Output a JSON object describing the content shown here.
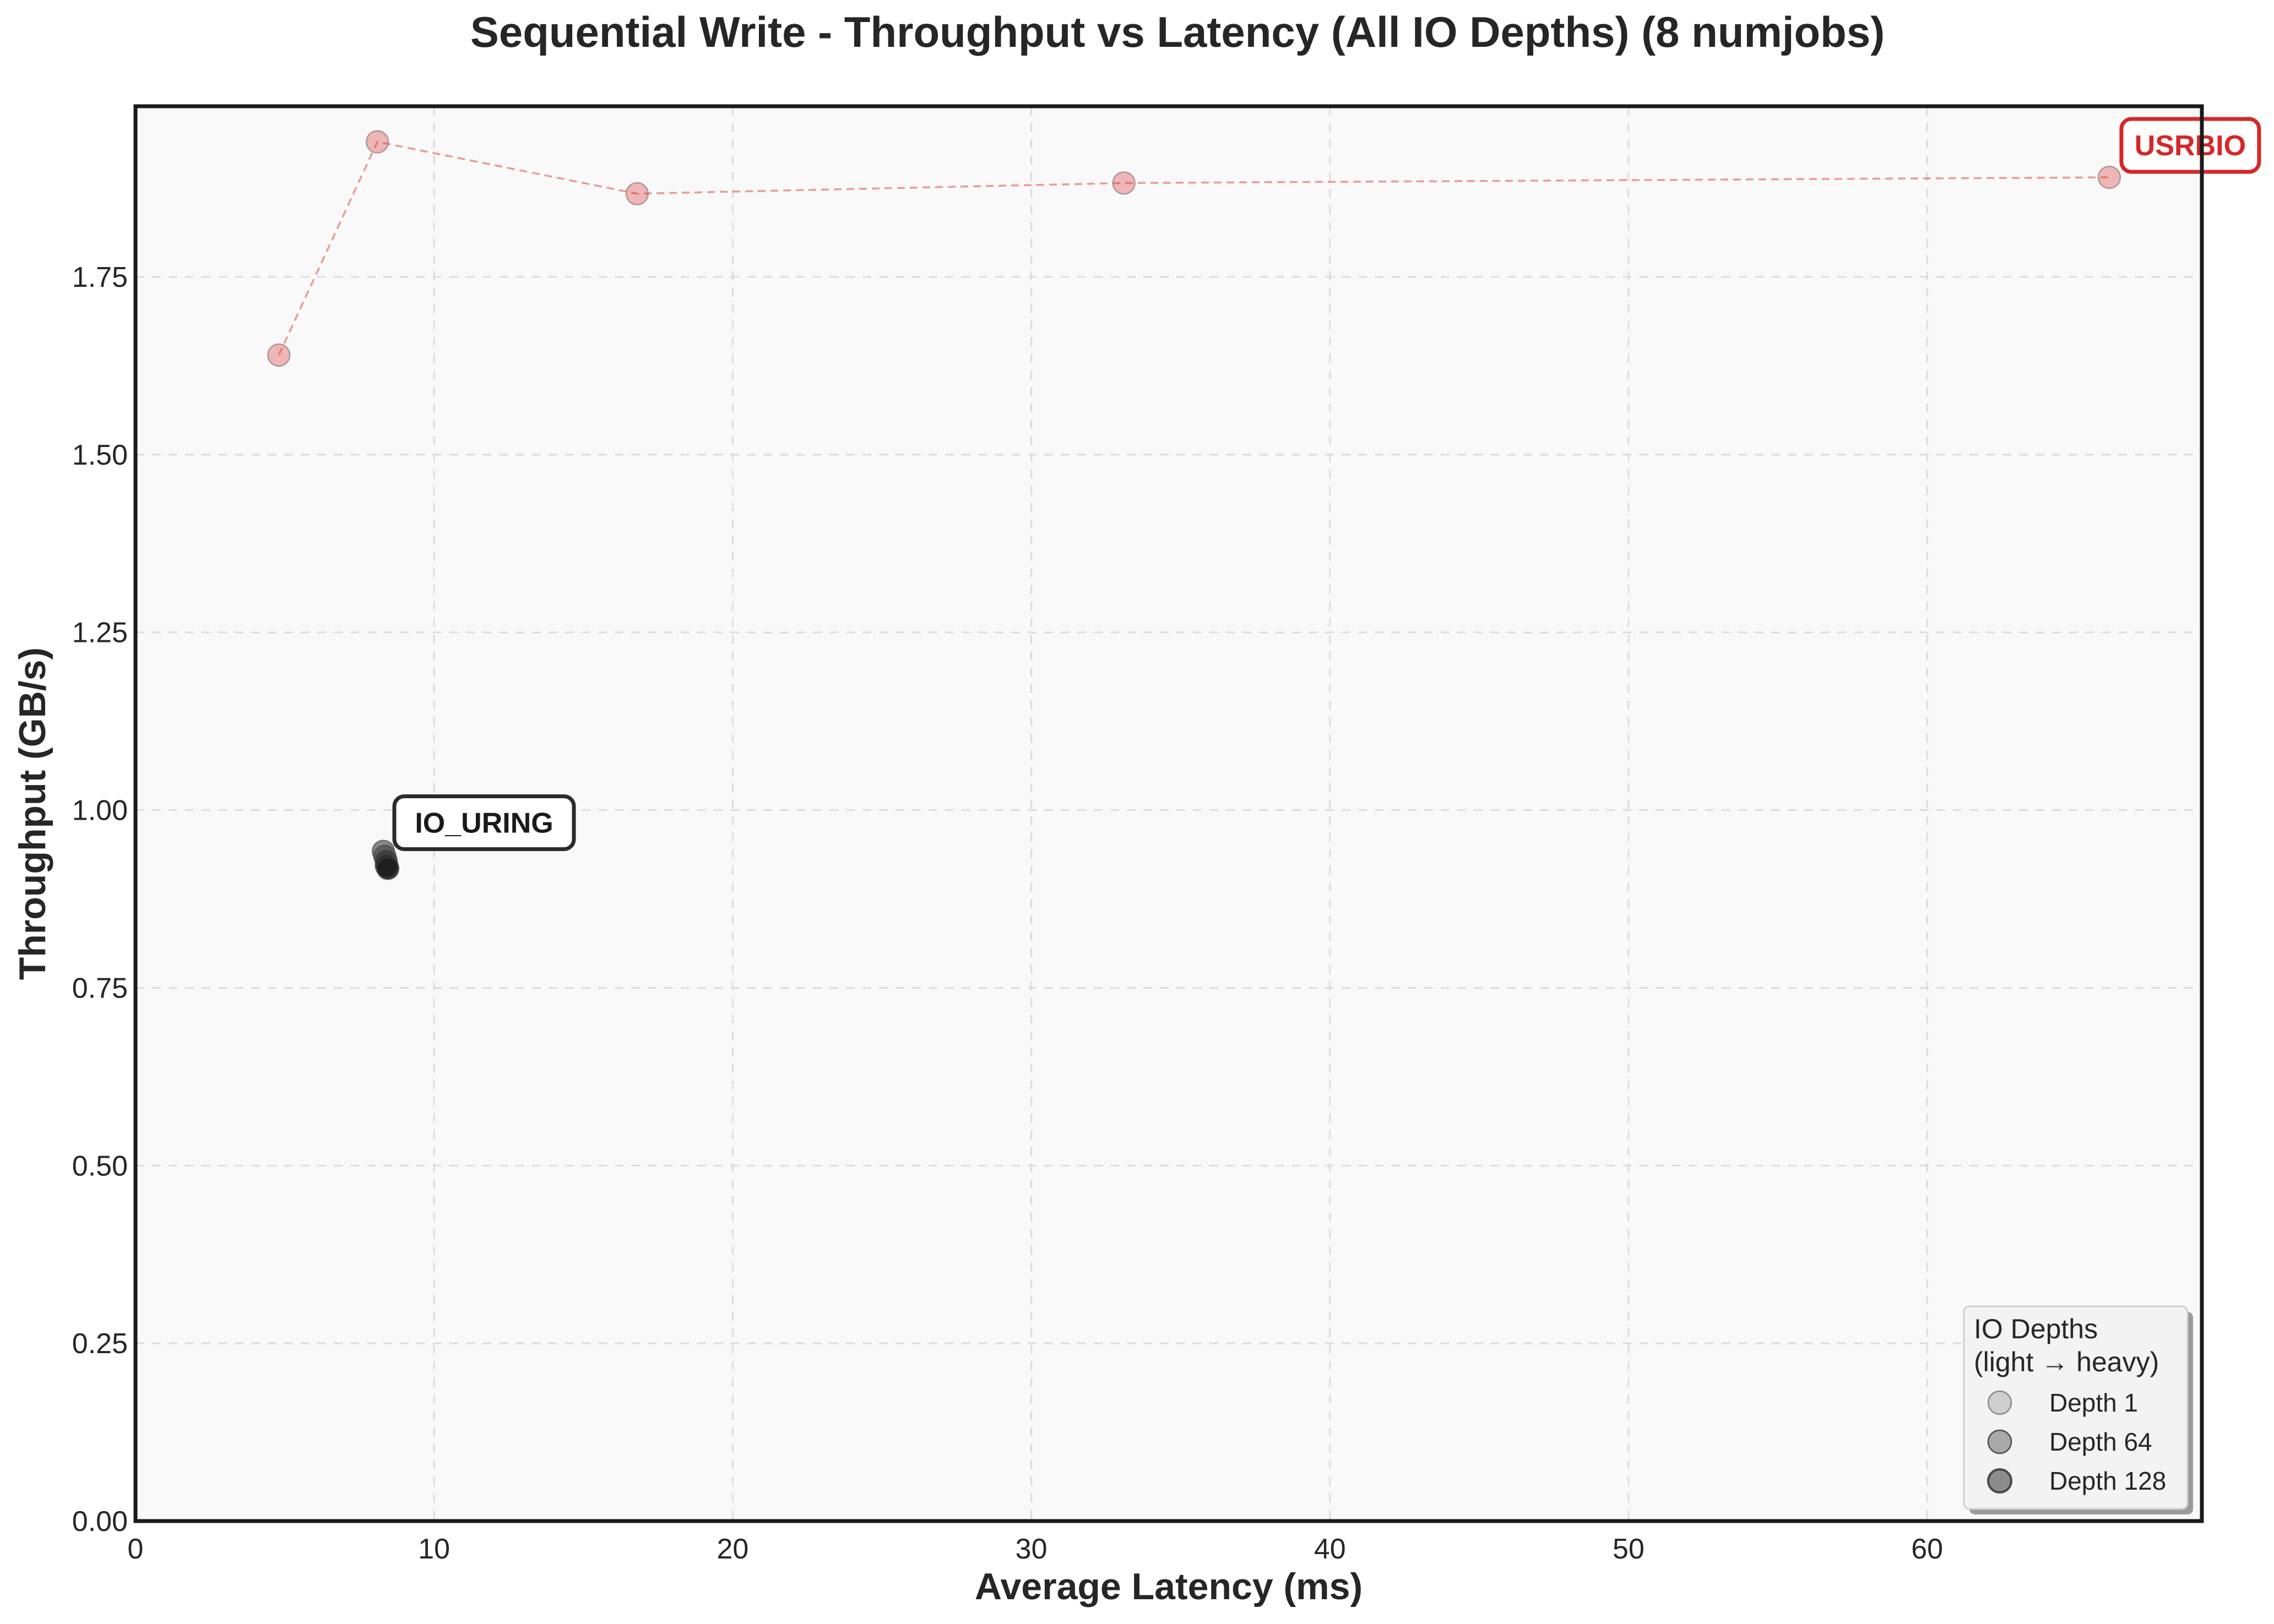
{
  "chart_data": {
    "type": "scatter",
    "title": "Sequential Write - Throughput vs Latency (All IO Depths) (8 numjobs)",
    "xlabel": "Average Latency (ms)",
    "ylabel": "Throughput (GB/s)",
    "xlim": [
      0,
      69.2
    ],
    "ylim": [
      0,
      1.99
    ],
    "xticks": [
      0,
      10,
      20,
      30,
      40,
      50,
      60
    ],
    "yticks": [
      "0.00",
      "0.25",
      "0.50",
      "0.75",
      "1.00",
      "1.25",
      "1.50",
      "1.75"
    ],
    "grid": true,
    "series": [
      {
        "name": "USRBIO",
        "color": "#d62728",
        "line": "dashed",
        "points": [
          {
            "x": 4.8,
            "y": 1.64
          },
          {
            "x": 8.1,
            "y": 1.94
          },
          {
            "x": 16.8,
            "y": 1.867
          },
          {
            "x": 33.1,
            "y": 1.882
          },
          {
            "x": 66.1,
            "y": 1.89
          }
        ]
      },
      {
        "name": "IO_URING",
        "color": "#1a1a1a",
        "line": "none",
        "points": [
          {
            "x": 8.3,
            "y": 0.942
          },
          {
            "x": 8.35,
            "y": 0.935
          },
          {
            "x": 8.4,
            "y": 0.928
          },
          {
            "x": 8.4,
            "y": 0.922
          },
          {
            "x": 8.45,
            "y": 0.918
          }
        ]
      }
    ],
    "legend": {
      "title_line1": "IO Depths",
      "title_line2": "(light → heavy)",
      "placement": "bottom-right",
      "entries": [
        {
          "label": "Depth 1",
          "shade": "#cfcfcf"
        },
        {
          "label": "Depth 64",
          "shade": "#a9a9a9"
        },
        {
          "label": "Depth 128",
          "shade": "#8c8c8c"
        }
      ]
    }
  }
}
